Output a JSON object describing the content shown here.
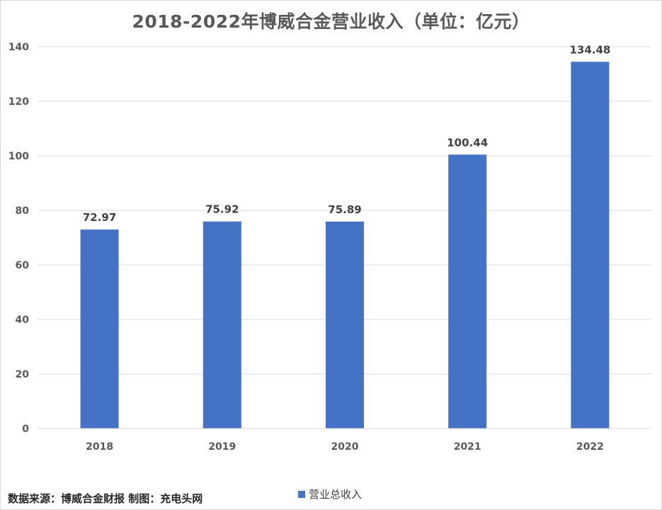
{
  "chart_data": {
    "type": "bar",
    "title": "2018-2022年博威合金营业收入（单位：亿元）",
    "categories": [
      "2018",
      "2019",
      "2020",
      "2021",
      "2022"
    ],
    "series": [
      {
        "name": "营业总收入",
        "values": [
          72.97,
          75.92,
          75.89,
          100.44,
          134.48
        ],
        "labels": [
          "72.97",
          "75.92",
          "75.89",
          "100.44",
          "134.48"
        ],
        "color": "#4472c4"
      }
    ],
    "ylim": [
      0,
      140
    ],
    "yticks": [
      0,
      20,
      40,
      60,
      80,
      100,
      120,
      140
    ],
    "grid": true,
    "legend_position": "bottom"
  },
  "footer": {
    "source": "数据来源：博威合金财报  制图：充电头网"
  },
  "colors": {
    "gridline": "#d9d9d9",
    "axis_text": "#595959"
  }
}
